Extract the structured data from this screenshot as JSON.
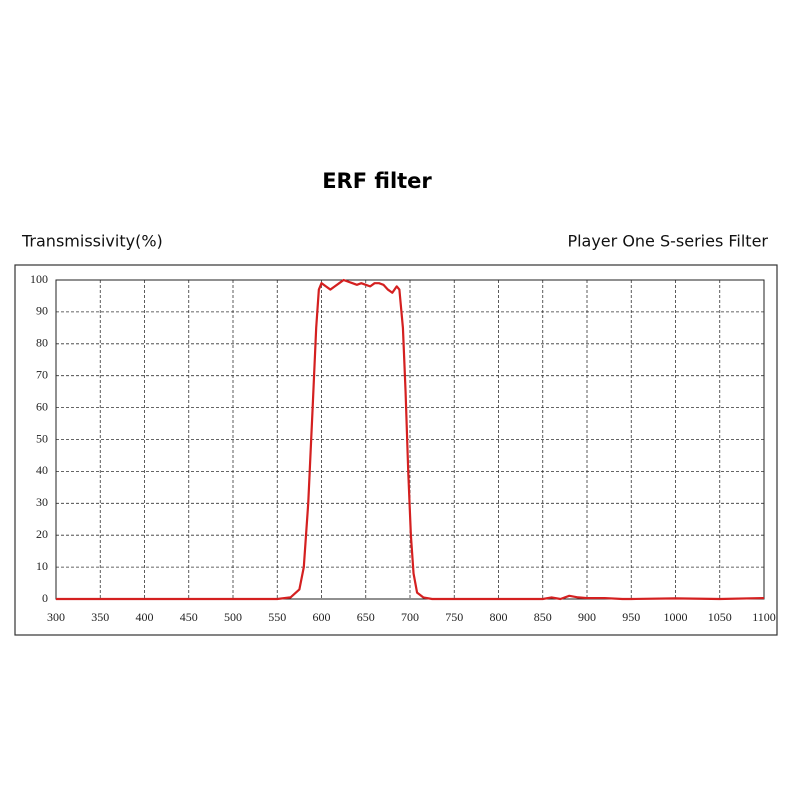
{
  "chart_data": {
    "type": "line",
    "title": "ERF filter",
    "y_label": "Transmissivity(%)",
    "annotation": "Player One S-series Filter",
    "x": [
      300,
      550,
      565,
      575,
      580,
      585,
      590,
      594,
      597,
      600,
      605,
      610,
      615,
      620,
      625,
      630,
      635,
      640,
      645,
      650,
      655,
      660,
      665,
      670,
      675,
      680,
      685,
      688,
      692,
      695,
      698,
      701,
      704,
      708,
      715,
      725,
      850,
      860,
      870,
      880,
      890,
      900,
      920,
      940,
      950,
      1000,
      1050,
      1100
    ],
    "series": [
      {
        "name": "ERF filter",
        "color": "#d42020",
        "values": [
          0,
          0,
          0.5,
          3,
          10,
          30,
          60,
          85,
          97,
          99,
          98,
          97,
          98,
          99,
          100,
          99.5,
          99,
          98.5,
          99,
          98.5,
          98,
          99,
          99,
          98.5,
          97,
          96,
          98,
          97,
          85,
          65,
          40,
          20,
          8,
          2,
          0.5,
          0,
          0,
          0.5,
          0,
          1,
          0.5,
          0.3,
          0.3,
          0,
          0,
          0.2,
          0,
          0.3
        ]
      }
    ],
    "xlim": [
      300,
      1100
    ],
    "xticks": [
      300,
      350,
      400,
      450,
      500,
      550,
      600,
      650,
      700,
      750,
      800,
      850,
      900,
      950,
      1000,
      1050,
      1100
    ],
    "ylim": [
      0,
      100
    ],
    "yticks": [
      0,
      10,
      20,
      30,
      40,
      50,
      60,
      70,
      80,
      90,
      100
    ],
    "grid": true
  }
}
